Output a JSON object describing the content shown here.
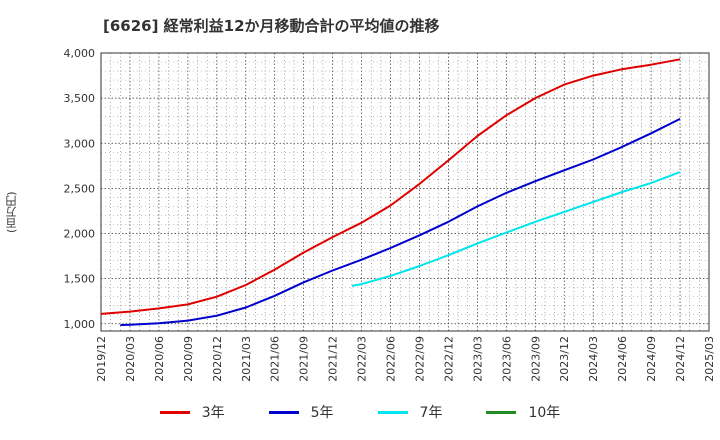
{
  "chart_data": {
    "type": "line",
    "title": "[6626]  経常利益12か月移動合計の平均値の推移",
    "ylabel": "(百万円)",
    "xlabel": "",
    "ylim": [
      920,
      4000
    ],
    "yticks": [
      1000,
      1500,
      2000,
      2500,
      3000,
      3500,
      4000
    ],
    "ytick_labels": [
      "1,000",
      "1,500",
      "2,000",
      "2,500",
      "3,000",
      "3,500",
      "4,000"
    ],
    "xticks": [
      "2019/12",
      "2020/03",
      "2020/06",
      "2020/09",
      "2020/12",
      "2021/03",
      "2021/06",
      "2021/09",
      "2021/12",
      "2022/03",
      "2022/06",
      "2022/09",
      "2022/12",
      "2023/03",
      "2023/06",
      "2023/09",
      "2023/12",
      "2024/03",
      "2024/06",
      "2024/09",
      "2024/12",
      "2025/03"
    ],
    "grid": true,
    "legend_position": "bottom",
    "series": [
      {
        "name": "3年",
        "color": "#e00000",
        "points": [
          [
            "2019/12",
            1110
          ],
          [
            "2020/03",
            1135
          ],
          [
            "2020/06",
            1170
          ],
          [
            "2020/09",
            1215
          ],
          [
            "2020/12",
            1300
          ],
          [
            "2021/03",
            1430
          ],
          [
            "2021/06",
            1600
          ],
          [
            "2021/09",
            1790
          ],
          [
            "2021/12",
            1960
          ],
          [
            "2022/03",
            2120
          ],
          [
            "2022/06",
            2310
          ],
          [
            "2022/09",
            2550
          ],
          [
            "2022/12",
            2810
          ],
          [
            "2023/03",
            3080
          ],
          [
            "2023/06",
            3310
          ],
          [
            "2023/09",
            3500
          ],
          [
            "2023/12",
            3650
          ],
          [
            "2024/03",
            3750
          ],
          [
            "2024/06",
            3820
          ],
          [
            "2024/09",
            3870
          ],
          [
            "2024/12",
            3930
          ]
        ]
      },
      {
        "name": "5年",
        "color": "#0000cc",
        "points": [
          [
            "2020/02",
            985
          ],
          [
            "2020/03",
            990
          ],
          [
            "2020/06",
            1005
          ],
          [
            "2020/09",
            1035
          ],
          [
            "2020/12",
            1090
          ],
          [
            "2021/03",
            1180
          ],
          [
            "2021/06",
            1310
          ],
          [
            "2021/09",
            1460
          ],
          [
            "2021/12",
            1590
          ],
          [
            "2022/03",
            1710
          ],
          [
            "2022/06",
            1840
          ],
          [
            "2022/09",
            1980
          ],
          [
            "2022/12",
            2130
          ],
          [
            "2023/03",
            2300
          ],
          [
            "2023/06",
            2450
          ],
          [
            "2023/09",
            2580
          ],
          [
            "2023/12",
            2700
          ],
          [
            "2024/03",
            2820
          ],
          [
            "2024/06",
            2960
          ],
          [
            "2024/09",
            3110
          ],
          [
            "2024/12",
            3270
          ]
        ]
      },
      {
        "name": "7年",
        "color": "#00e5ee",
        "points": [
          [
            "2022/02",
            1420
          ],
          [
            "2022/03",
            1440
          ],
          [
            "2022/06",
            1530
          ],
          [
            "2022/09",
            1640
          ],
          [
            "2022/12",
            1760
          ],
          [
            "2023/03",
            1890
          ],
          [
            "2023/06",
            2010
          ],
          [
            "2023/09",
            2130
          ],
          [
            "2023/12",
            2240
          ],
          [
            "2024/03",
            2350
          ],
          [
            "2024/06",
            2460
          ],
          [
            "2024/09",
            2560
          ],
          [
            "2024/12",
            2680
          ]
        ]
      },
      {
        "name": "10年",
        "color": "#228b22",
        "points": []
      }
    ]
  }
}
